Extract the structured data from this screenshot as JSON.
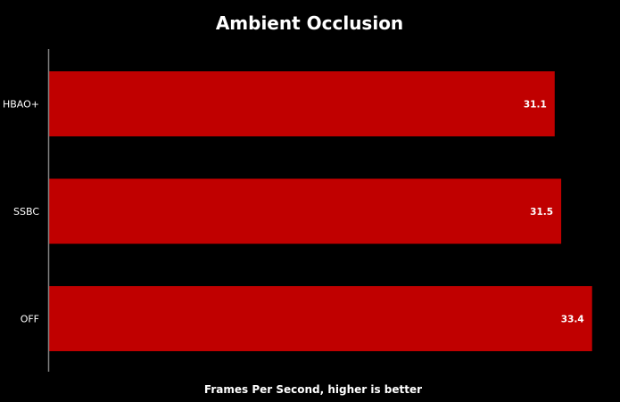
{
  "chart_data": {
    "type": "bar",
    "orientation": "horizontal",
    "title": "Ambient Occlusion",
    "xlabel": "Frames Per Second, higher is better",
    "ylabel": "",
    "categories": [
      "HBAO+",
      "SSBC",
      "OFF"
    ],
    "values": [
      31.1,
      31.5,
      33.4
    ],
    "value_labels": [
      "31.1",
      "31.5",
      "33.4"
    ],
    "xlim": [
      0,
      40
    ],
    "grid": false,
    "legend": "none",
    "colors": {
      "bar": "#c00000",
      "background": "#000000",
      "text": "#ffffff",
      "axis": "#808080"
    }
  }
}
